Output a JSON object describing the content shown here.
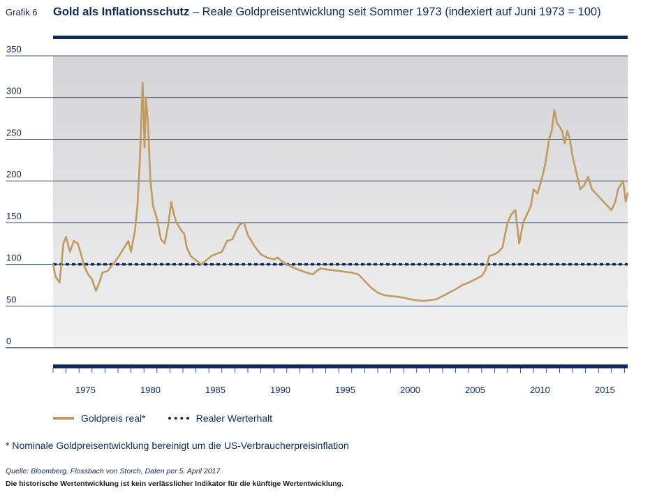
{
  "header": {
    "figure_label": "Grafik 6",
    "title_bold": "Gold als Inflationsschutz",
    "title_rest": " – Reale Goldpreisentwicklung seit Sommer 1973 (indexiert auf Juni 1973 = 100)"
  },
  "legend": {
    "gold_label": "Goldpreis real*",
    "dash_label": "Realer Werterhalt"
  },
  "footnote": "*  Nominale Goldpreisentwicklung bereinigt um die US-Verbraucherpreisinflation",
  "source": "Quelle: Bloomberg, Flossbach von Storch, Daten per 5. April 2017",
  "disclaimer": "Die historische Wertentwicklung ist kein verlässlicher Indikator für die künftige Wertentwicklung.",
  "colors": {
    "gold": "#c09a61",
    "navy": "#0d2a5a",
    "plot_bg_top": "#d4d4d6",
    "plot_bg_bottom": "#f1f1f2"
  },
  "chart_data": {
    "type": "line",
    "title": "Gold als Inflationsschutz – Reale Goldpreisentwicklung seit Sommer 1973 (indexiert auf Juni 1973 = 100)",
    "xlabel": "",
    "ylabel": "",
    "xlim": [
      1973.0,
      2017.25
    ],
    "ylim": [
      0,
      350
    ],
    "yticks": [
      0,
      50,
      100,
      150,
      200,
      250,
      300,
      350
    ],
    "xticks": [
      1975,
      1980,
      1985,
      1990,
      1995,
      2000,
      2005,
      2010,
      2015
    ],
    "grid": true,
    "legend_position": "bottom-left",
    "reference_line": {
      "name": "Realer Werterhalt",
      "value": 100,
      "style": "dotted"
    },
    "series": [
      {
        "name": "Goldpreis real*",
        "x": [
          1973.0,
          1973.2,
          1973.5,
          1973.8,
          1974.0,
          1974.3,
          1974.6,
          1974.9,
          1975.1,
          1975.4,
          1975.7,
          1976.0,
          1976.3,
          1976.6,
          1976.8,
          1977.2,
          1977.6,
          1978.0,
          1978.4,
          1978.8,
          1979.0,
          1979.3,
          1979.5,
          1979.7,
          1979.9,
          1980.05,
          1980.15,
          1980.3,
          1980.5,
          1980.7,
          1981.0,
          1981.3,
          1981.6,
          1981.9,
          1982.1,
          1982.3,
          1982.5,
          1982.7,
          1982.9,
          1983.1,
          1983.3,
          1983.6,
          1984.0,
          1984.4,
          1984.8,
          1985.2,
          1985.5,
          1986.0,
          1986.4,
          1986.8,
          1987.1,
          1987.4,
          1987.7,
          1988.0,
          1988.5,
          1989.0,
          1989.5,
          1990.0,
          1990.3,
          1990.6,
          1991.0,
          1991.5,
          1992.0,
          1992.5,
          1993.0,
          1993.3,
          1993.6,
          1994.0,
          1994.5,
          1995.0,
          1995.5,
          1996.0,
          1996.5,
          1997.0,
          1997.5,
          1998.0,
          1998.5,
          1999.0,
          1999.5,
          2000.0,
          2000.5,
          2001.0,
          2001.5,
          2002.0,
          2002.5,
          2003.0,
          2003.5,
          2004.0,
          2004.5,
          2005.0,
          2005.5,
          2006.0,
          2006.3,
          2006.6,
          2007.0,
          2007.3,
          2007.6,
          2008.0,
          2008.3,
          2008.6,
          2008.9,
          2009.2,
          2009.5,
          2009.8,
          2010.0,
          2010.3,
          2010.6,
          2010.9,
          2011.2,
          2011.4,
          2011.6,
          2011.8,
          2012.0,
          2012.2,
          2012.4,
          2012.6,
          2012.8,
          2013.0,
          2013.3,
          2013.6,
          2013.9,
          2014.2,
          2014.5,
          2014.8,
          2015.1,
          2015.4,
          2015.7,
          2016.0,
          2016.3,
          2016.5,
          2016.7,
          2016.9,
          2017.1,
          2017.25
        ],
        "values": [
          100,
          85,
          78,
          125,
          133,
          115,
          128,
          125,
          115,
          98,
          88,
          82,
          68,
          80,
          90,
          92,
          100,
          108,
          118,
          128,
          115,
          140,
          170,
          230,
          318,
          240,
          300,
          270,
          200,
          170,
          155,
          130,
          125,
          150,
          175,
          160,
          150,
          145,
          140,
          137,
          120,
          110,
          105,
          100,
          105,
          110,
          112,
          115,
          128,
          130,
          140,
          148,
          150,
          135,
          122,
          112,
          108,
          106,
          108,
          104,
          100,
          96,
          93,
          90,
          88,
          92,
          95,
          94,
          93,
          92,
          91,
          90,
          88,
          80,
          72,
          66,
          63,
          62,
          61,
          60,
          58,
          57,
          56,
          57,
          58,
          62,
          66,
          70,
          75,
          78,
          82,
          86,
          93,
          110,
          112,
          115,
          120,
          150,
          160,
          165,
          125,
          150,
          160,
          170,
          190,
          185,
          200,
          220,
          250,
          260,
          285,
          270,
          265,
          260,
          245,
          260,
          250,
          230,
          210,
          190,
          195,
          205,
          190,
          185,
          180,
          175,
          170,
          165,
          175,
          190,
          195,
          200,
          175,
          185
        ]
      }
    ]
  }
}
